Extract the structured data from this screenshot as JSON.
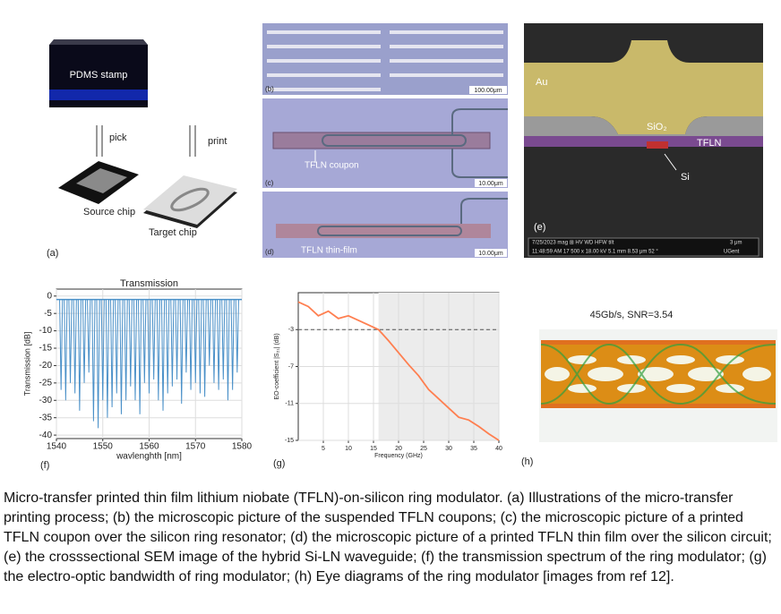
{
  "panel_a": {
    "stamp": "PDMS stamp",
    "pick": "pick",
    "print": "print",
    "source": "Source chip",
    "target": "Target chip",
    "label": "(a)"
  },
  "panel_b": {
    "label": "(b)",
    "scale": "100.00μm"
  },
  "panel_c": {
    "label": "(c)",
    "annotation": "TFLN coupon",
    "scale": "10.00μm"
  },
  "panel_d": {
    "label": "(d)",
    "annotation": "TFLN thin-film",
    "scale": "10.00μm"
  },
  "panel_e": {
    "label": "(e)",
    "au": "Au",
    "sio2": "SiO₂",
    "tfln": "TFLN",
    "si": "Si",
    "info_1": "7/25/2023   mag ⊞   HV   WD   HFW   tilt",
    "info_2": "11:48:59 AM 17 500 x 18.00 kV 5.1 mm 8.53 μm 52 °",
    "scale": "3 μm",
    "org": "UGent"
  },
  "panel_h": {
    "label": "(h)",
    "title": "45Gb/s, SNR=3.54"
  },
  "chart_data": [
    {
      "type": "stem",
      "panel_label": "(f)",
      "title": "Transmission",
      "xlabel": "wavlenghth [nm]",
      "ylabel": "Transmission [dB]",
      "color": "#4a90c8",
      "grid": true,
      "baseline": -1,
      "x": [
        1541,
        1542,
        1543,
        1544,
        1545,
        1546,
        1547,
        1548,
        1549,
        1550,
        1551,
        1552,
        1553,
        1554,
        1555,
        1556,
        1557,
        1558,
        1559,
        1560,
        1561,
        1562,
        1563,
        1564,
        1565,
        1566,
        1567,
        1568,
        1569,
        1570,
        1571,
        1572,
        1573,
        1574,
        1575,
        1576,
        1577,
        1578,
        1579
      ],
      "values": [
        -27,
        -30,
        -25,
        -28,
        -33,
        -25,
        -22,
        -36,
        -38,
        -30,
        -35,
        -32,
        -28,
        -34,
        -30,
        -26,
        -30,
        -34,
        -25,
        -28,
        -24,
        -30,
        -33,
        -28,
        -26,
        -24,
        -31,
        -22,
        -27,
        -25,
        -28,
        -29,
        -20,
        -25,
        -27,
        -24,
        -30,
        -27,
        -22
      ],
      "xlim": [
        1540,
        1580
      ],
      "xticks": [
        1540,
        1550,
        1560,
        1570,
        1580
      ],
      "ylim": [
        -41,
        2
      ],
      "yticks": [
        0,
        -5,
        -10,
        -15,
        -20,
        -25,
        -30,
        -35,
        -40
      ]
    },
    {
      "type": "line",
      "panel_label": "(g)",
      "xlabel": "Frequency (GHz)",
      "ylabel": "EO-coefficient |S₂₁| (dB)",
      "color": "#ff7f50",
      "grid": true,
      "reference_line": -3,
      "shaded_range": [
        16,
        40
      ],
      "x": [
        0,
        2,
        4,
        6,
        8,
        10,
        12,
        14,
        16,
        18,
        20,
        22,
        24,
        26,
        28,
        30,
        32,
        34,
        36,
        38,
        40
      ],
      "values": [
        0,
        -0.5,
        -1.5,
        -1,
        -1.8,
        -1.5,
        -2,
        -2.5,
        -3,
        -4.2,
        -5.5,
        -6.8,
        -8,
        -9.5,
        -10.5,
        -11.5,
        -12.5,
        -12.8,
        -13.5,
        -14.3,
        -15
      ],
      "xlim": [
        0,
        40
      ],
      "xticks": [
        5,
        10,
        15,
        20,
        25,
        30,
        35,
        40
      ],
      "ylim": [
        -15,
        1
      ],
      "yticks": [
        -3,
        -7,
        -11,
        -15
      ]
    }
  ],
  "caption": "Micro-transfer printed thin film lithium niobate (TFLN)-on-silicon ring modulator. (a) Illustrations of the micro-transfer printing process; (b) the microscopic picture of the suspended TFLN coupons; (c) the microscopic picture of a printed TFLN coupon over the silicon ring resonator; (d) the microscopic picture of a printed TFLN thin film over the silicon circuit; (e) the crosssectional SEM image of the hybrid Si-LN waveguide; (f) the transmission spectrum of the ring modulator; (g) the electro-optic bandwidth of ring modulator; (h) Eye diagrams of the ring modulator [images from ref 12]."
}
